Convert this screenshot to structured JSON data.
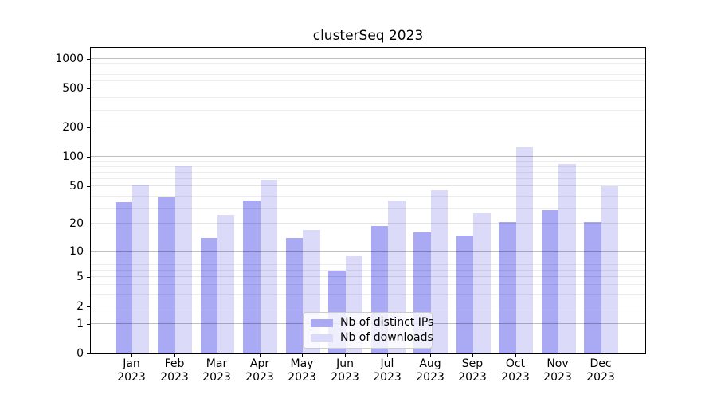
{
  "title": "clusterSeq 2023",
  "chart_data": {
    "type": "bar",
    "title": "clusterSeq 2023",
    "y_scale": "log(1+x)",
    "grid": true,
    "legend_position": "lower center",
    "categories": [
      "Jan 2023",
      "Feb 2023",
      "Mar 2023",
      "Apr 2023",
      "May 2023",
      "Jun 2023",
      "Jul 2023",
      "Aug 2023",
      "Sep 2023",
      "Oct 2023",
      "Nov 2023",
      "Dec 2023"
    ],
    "series": [
      {
        "name": "Nb of distinct IPs",
        "color": "#a9a9f4",
        "values": [
          34,
          38,
          14,
          35,
          14,
          6,
          19,
          16,
          15,
          21,
          28,
          21
        ]
      },
      {
        "name": "Nb of downloads",
        "color": "#dbdbf9",
        "values": [
          52,
          82,
          25,
          58,
          17,
          9,
          35,
          45,
          26,
          126,
          85,
          50
        ]
      }
    ],
    "y_ticks": [
      0,
      1,
      2,
      5,
      10,
      20,
      50,
      100,
      200,
      500,
      1000
    ],
    "ylim": [
      0,
      1330
    ]
  }
}
